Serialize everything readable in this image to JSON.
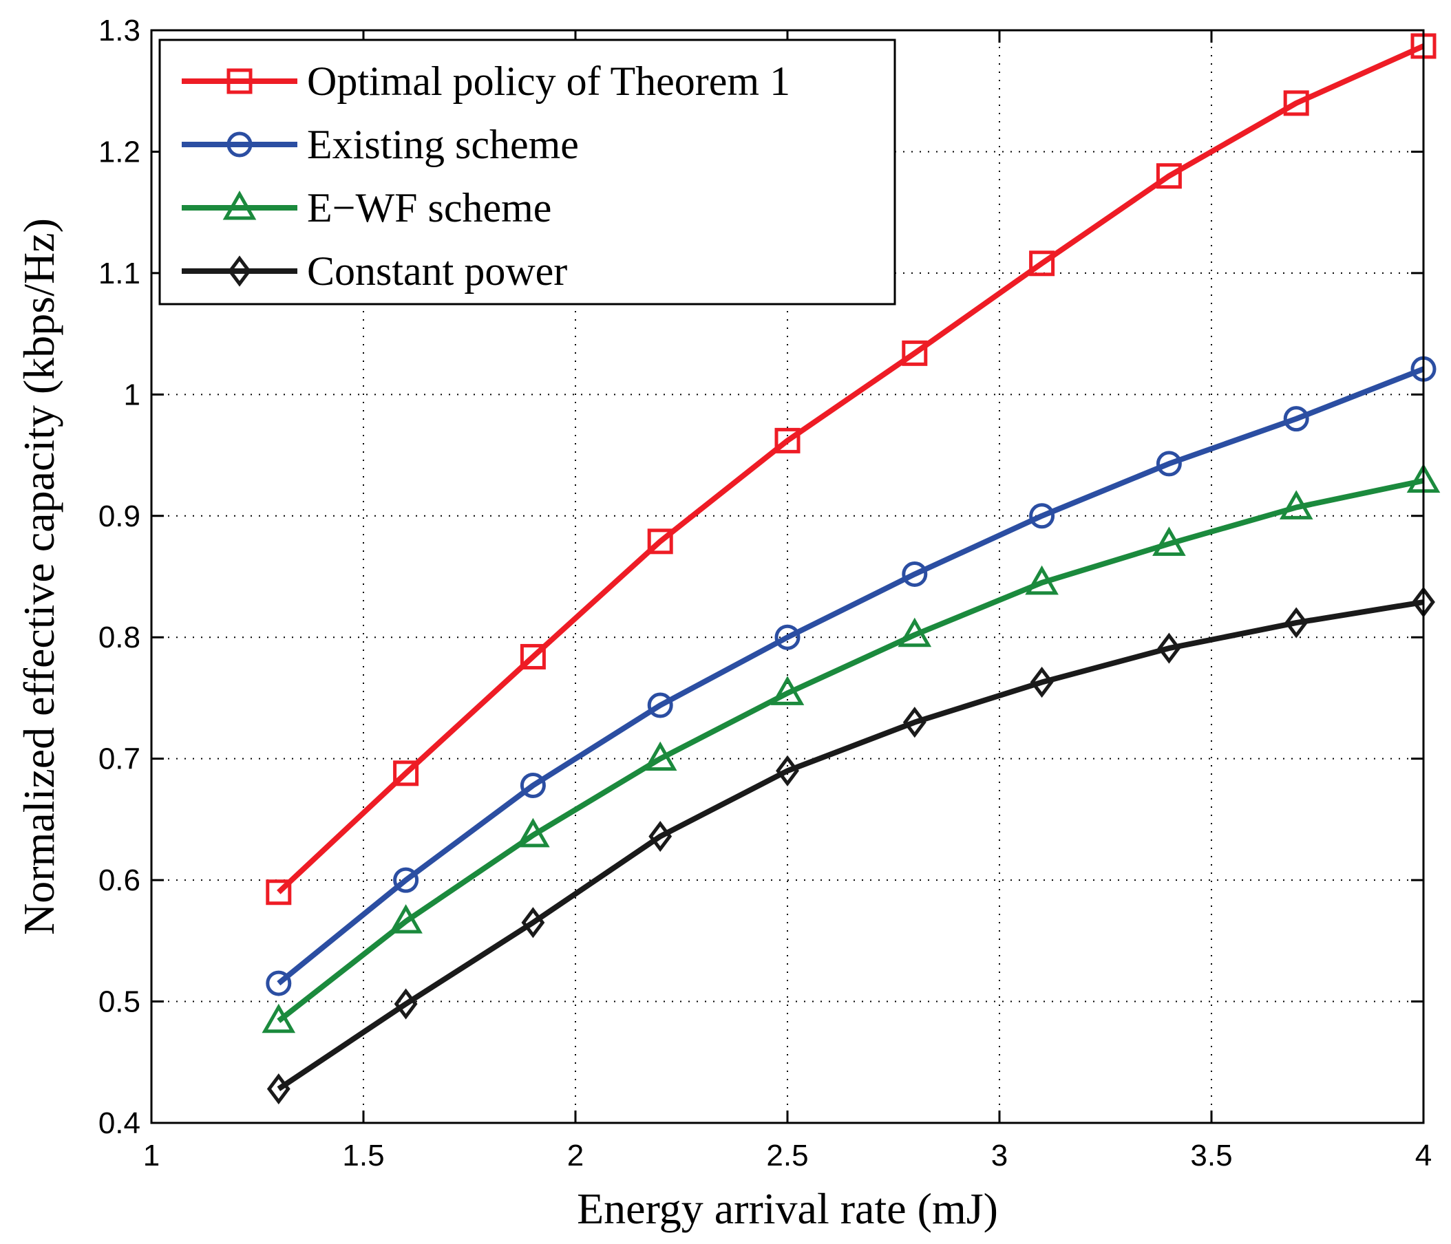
{
  "chart_data": {
    "type": "line",
    "title": "",
    "xlabel": "Energy arrival rate (mJ)",
    "ylabel": "Normalized effective capacity (kbps/Hz)",
    "xlim": [
      1,
      4
    ],
    "ylim": [
      0.4,
      1.3
    ],
    "xticks": [
      "1",
      "1.5",
      "2",
      "2.5",
      "3",
      "3.5",
      "4"
    ],
    "yticks": [
      "0.4",
      "0.5",
      "0.6",
      "0.7",
      "0.8",
      "0.9",
      "1",
      "1.1",
      "1.2",
      "1.3"
    ],
    "grid": true,
    "legend_position": "top-left",
    "x": [
      1.3,
      1.6,
      1.9,
      2.2,
      2.5,
      2.8,
      3.1,
      3.4,
      3.7,
      4.0
    ],
    "series": [
      {
        "name": "Optimal policy of Theorem 1",
        "color": "#ee1c25",
        "marker": "square",
        "values": [
          0.59,
          0.688,
          0.784,
          0.879,
          0.962,
          1.034,
          1.108,
          1.18,
          1.24,
          1.287
        ]
      },
      {
        "name": "Existing scheme",
        "color": "#2b4ea2",
        "marker": "circle",
        "values": [
          0.515,
          0.6,
          0.678,
          0.744,
          0.8,
          0.852,
          0.9,
          0.943,
          0.98,
          1.021
        ]
      },
      {
        "name": "E−WF scheme",
        "color": "#1b8a3d",
        "marker": "triangle",
        "values": [
          0.484,
          0.566,
          0.637,
          0.7,
          0.754,
          0.802,
          0.845,
          0.877,
          0.907,
          0.929
        ]
      },
      {
        "name": "Constant power",
        "color": "#1a1a1a",
        "marker": "diamond",
        "values": [
          0.428,
          0.498,
          0.565,
          0.636,
          0.69,
          0.73,
          0.763,
          0.791,
          0.812,
          0.829
        ]
      }
    ]
  }
}
